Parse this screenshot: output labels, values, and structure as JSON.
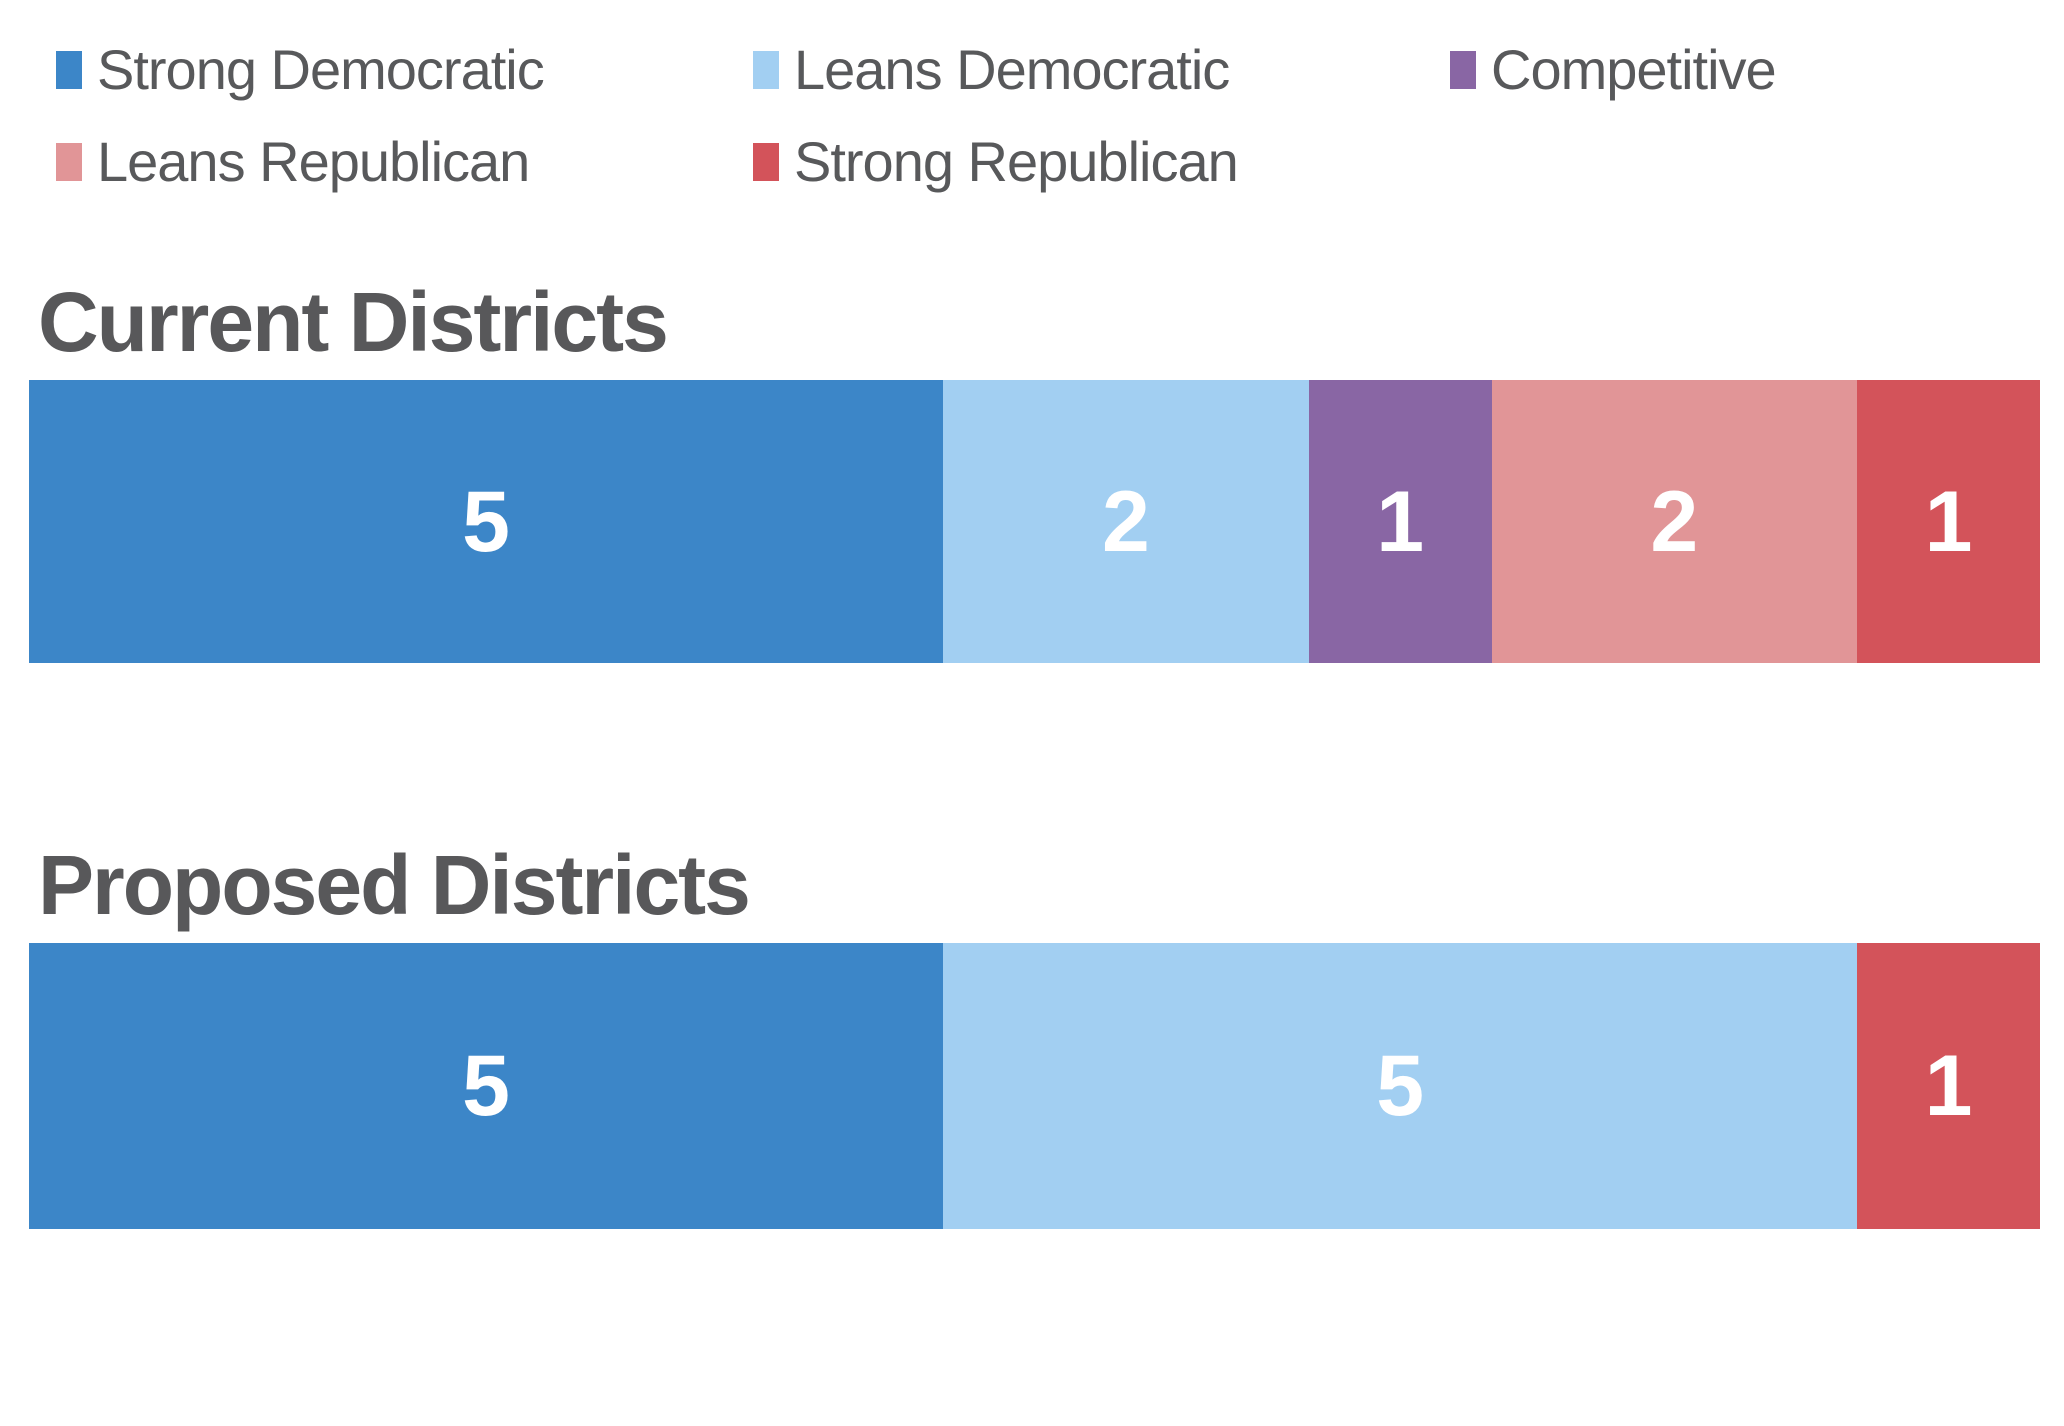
{
  "legend": {
    "items": [
      {
        "label": "Strong Democratic",
        "color": "#3C86C8"
      },
      {
        "label": "Leans Democratic",
        "color": "#A2CFF2"
      },
      {
        "label": "Competitive",
        "color": "#8966A4"
      },
      {
        "label": "Leans Republican",
        "color": "#E19597"
      },
      {
        "label": "Strong Republican",
        "color": "#D3535A"
      }
    ]
  },
  "colors": {
    "strong_democratic": "#3C86C8",
    "leans_democratic": "#A2CFF2",
    "competitive": "#8966A4",
    "leans_republican": "#E19597",
    "strong_republican": "#D3535A",
    "heading_text": "#58585A",
    "legend_text": "#58595B",
    "bar_label_text": "#FFFFFF"
  },
  "sections": [
    {
      "title": "Current Districts",
      "total": 11,
      "segments": [
        {
          "category": "Strong Democratic",
          "value": 5,
          "color": "#3C86C8"
        },
        {
          "category": "Leans Democratic",
          "value": 2,
          "color": "#A2CFF2"
        },
        {
          "category": "Competitive",
          "value": 1,
          "color": "#8966A4"
        },
        {
          "category": "Leans Republican",
          "value": 2,
          "color": "#E19597"
        },
        {
          "category": "Strong Republican",
          "value": 1,
          "color": "#D3535A"
        }
      ]
    },
    {
      "title": "Proposed Districts",
      "total": 11,
      "segments": [
        {
          "category": "Strong Democratic",
          "value": 5,
          "color": "#3C86C8"
        },
        {
          "category": "Leans Democratic",
          "value": 5,
          "color": "#A2CFF2"
        },
        {
          "category": "Strong Republican",
          "value": 1,
          "color": "#D3535A"
        }
      ]
    }
  ],
  "chart_data": [
    {
      "type": "bar",
      "subtype": "stacked-horizontal-single-row",
      "title": "Current Districts",
      "categories": [
        "Strong Democratic",
        "Leans Democratic",
        "Competitive",
        "Leans Republican",
        "Strong Republican"
      ],
      "values": [
        5,
        2,
        1,
        2,
        1
      ],
      "colors": [
        "#3C86C8",
        "#A2CFF2",
        "#8966A4",
        "#E19597",
        "#D3535A"
      ],
      "total": 11,
      "data_labels": "inside-center-white",
      "xlabel": "",
      "ylabel": "",
      "axes_visible": false,
      "grid": false,
      "legend_position": "top-left-two-rows"
    },
    {
      "type": "bar",
      "subtype": "stacked-horizontal-single-row",
      "title": "Proposed Districts",
      "categories": [
        "Strong Democratic",
        "Leans Democratic",
        "Strong Republican"
      ],
      "values": [
        5,
        5,
        1
      ],
      "colors": [
        "#3C86C8",
        "#A2CFF2",
        "#D3535A"
      ],
      "total": 11,
      "data_labels": "inside-center-white",
      "xlabel": "",
      "ylabel": "",
      "axes_visible": false,
      "grid": false,
      "legend_position": "shared-top"
    }
  ]
}
